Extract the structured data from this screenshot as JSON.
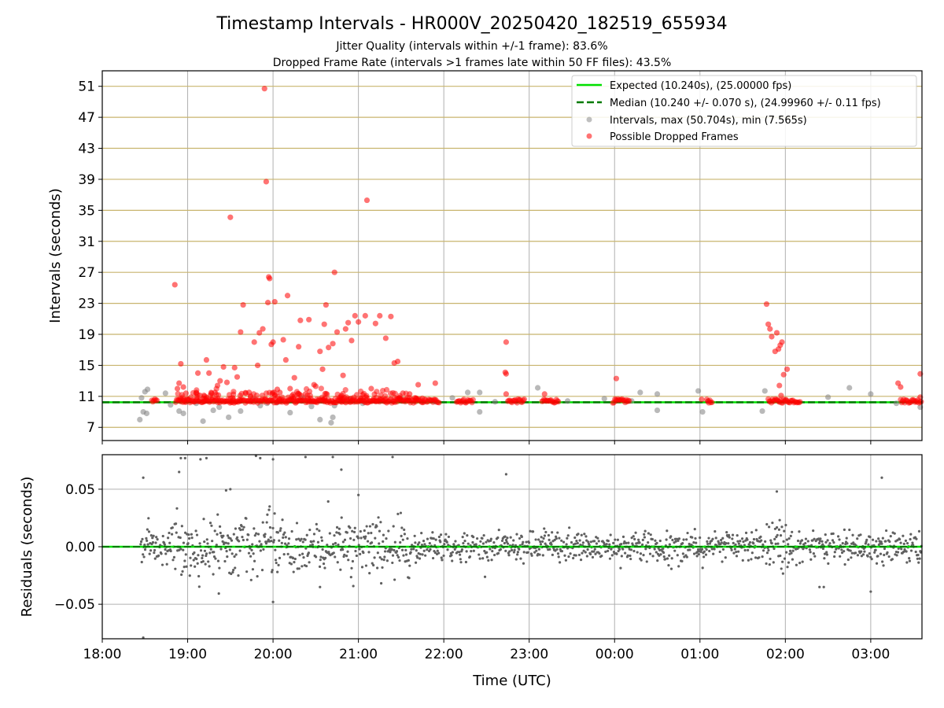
{
  "title": "Timestamp Intervals - HR000V_20250420_182519_655934",
  "subtitle_lines": [
    "Jitter Quality (intervals within +/-1 frame): 83.6%",
    "Dropped Frame Rate (intervals >1 frames late within 50 FF files): 43.5%"
  ],
  "colors": {
    "expected": "#00e000",
    "median": "#007a00",
    "intervals": "#808080",
    "dropped": "#ff0000",
    "hgrid_top": "#c8b46e",
    "grid": "#b0b0b0",
    "residual": "#606060"
  },
  "chart_data": [
    {
      "type": "scatter",
      "panel": "intervals",
      "ylabel": "Intervals (seconds)",
      "xlabel": "",
      "x_unit": "hours since 18:00 UTC",
      "xlim": [
        18.0,
        27.6
      ],
      "ylim": [
        5.3,
        53.0
      ],
      "yticks": [
        7,
        11,
        15,
        19,
        23,
        27,
        31,
        35,
        39,
        43,
        47,
        51
      ],
      "xticks": [
        {
          "value": 18,
          "label": "18:00"
        },
        {
          "value": 19,
          "label": "19:00"
        },
        {
          "value": 20,
          "label": "20:00"
        },
        {
          "value": 21,
          "label": "21:00"
        },
        {
          "value": 22,
          "label": "22:00"
        },
        {
          "value": 23,
          "label": "23:00"
        },
        {
          "value": 24,
          "label": "00:00"
        },
        {
          "value": 25,
          "label": "01:00"
        },
        {
          "value": 26,
          "label": "02:00"
        },
        {
          "value": 27,
          "label": "03:00"
        }
      ],
      "grid": true,
      "legend_position": "top-right",
      "lines": [
        {
          "name": "Expected (10.240s), (25.00000 fps)",
          "y": 10.24,
          "style": "solid"
        },
        {
          "name": "Median (10.240 +/- 0.070 s), (24.99960 +/- 0.11 fps)",
          "y": 10.24,
          "style": "dashed"
        }
      ],
      "series": [
        {
          "name": "Intervals, max (50.704s), min (7.565s)",
          "points": [
            [
              18.44,
              8.0
            ],
            [
              18.48,
              9.0
            ],
            [
              18.5,
              11.6
            ],
            [
              18.52,
              8.8
            ],
            [
              18.53,
              11.9
            ],
            [
              18.46,
              10.8
            ],
            [
              18.74,
              11.4
            ],
            [
              18.8,
              9.9
            ],
            [
              18.9,
              9.1
            ],
            [
              18.95,
              8.8
            ],
            [
              19.1,
              10.1
            ],
            [
              19.18,
              7.8
            ],
            [
              19.3,
              9.2
            ],
            [
              19.37,
              9.6
            ],
            [
              19.48,
              8.3
            ],
            [
              19.62,
              9.1
            ],
            [
              19.78,
              10.6
            ],
            [
              19.85,
              9.8
            ],
            [
              19.93,
              10.1
            ],
            [
              20.05,
              10.2
            ],
            [
              20.2,
              8.9
            ],
            [
              20.35,
              10.8
            ],
            [
              20.45,
              9.7
            ],
            [
              20.55,
              8.0
            ],
            [
              20.68,
              7.6
            ],
            [
              20.7,
              8.3
            ],
            [
              20.72,
              9.8
            ],
            [
              20.9,
              10.6
            ],
            [
              21.05,
              10.1
            ],
            [
              21.5,
              10.7
            ],
            [
              21.9,
              10.3
            ],
            [
              22.1,
              10.8
            ],
            [
              22.28,
              11.5
            ],
            [
              22.42,
              11.5
            ],
            [
              22.42,
              9.0
            ],
            [
              22.6,
              10.3
            ],
            [
              23.1,
              12.1
            ],
            [
              23.45,
              10.4
            ],
            [
              23.88,
              10.7
            ],
            [
              24.2,
              10.4
            ],
            [
              24.3,
              11.5
            ],
            [
              24.5,
              11.3
            ],
            [
              24.5,
              9.2
            ],
            [
              24.98,
              11.7
            ],
            [
              25.03,
              9.0
            ],
            [
              25.1,
              10.4
            ],
            [
              25.73,
              9.1
            ],
            [
              25.76,
              11.7
            ],
            [
              26.0,
              10.5
            ],
            [
              26.5,
              10.9
            ],
            [
              26.75,
              12.1
            ],
            [
              27.0,
              11.3
            ],
            [
              27.3,
              10.1
            ],
            [
              27.58,
              9.6
            ]
          ]
        },
        {
          "name": "Possible Dropped Frames",
          "points": [
            [
              18.85,
              25.4
            ],
            [
              18.88,
              12.0
            ],
            [
              18.9,
              12.7
            ],
            [
              18.92,
              15.2
            ],
            [
              18.95,
              12.2
            ],
            [
              18.98,
              11.4
            ],
            [
              19.1,
              11.4
            ],
            [
              19.12,
              14.0
            ],
            [
              19.2,
              11.0
            ],
            [
              19.22,
              15.7
            ],
            [
              19.25,
              14.0
            ],
            [
              19.28,
              11.4
            ],
            [
              19.32,
              11.5
            ],
            [
              19.35,
              12.4
            ],
            [
              19.38,
              13.0
            ],
            [
              19.42,
              14.8
            ],
            [
              19.46,
              12.8
            ],
            [
              19.5,
              34.1
            ],
            [
              19.55,
              14.7
            ],
            [
              19.58,
              13.5
            ],
            [
              19.62,
              19.3
            ],
            [
              19.65,
              22.8
            ],
            [
              19.68,
              11.4
            ],
            [
              19.72,
              11.5
            ],
            [
              19.78,
              18.0
            ],
            [
              19.82,
              15.0
            ],
            [
              19.84,
              19.2
            ],
            [
              19.88,
              19.7
            ],
            [
              19.9,
              50.7
            ],
            [
              19.92,
              38.7
            ],
            [
              19.94,
              23.1
            ],
            [
              19.95,
              26.4
            ],
            [
              19.96,
              26.2
            ],
            [
              19.98,
              17.7
            ],
            [
              20.0,
              18.0
            ],
            [
              20.02,
              23.2
            ],
            [
              20.05,
              11.9
            ],
            [
              20.08,
              11.5
            ],
            [
              20.12,
              18.3
            ],
            [
              20.15,
              15.7
            ],
            [
              20.17,
              24.0
            ],
            [
              20.2,
              12.0
            ],
            [
              20.25,
              13.4
            ],
            [
              20.3,
              17.4
            ],
            [
              20.32,
              20.8
            ],
            [
              20.38,
              11.3
            ],
            [
              20.42,
              20.9
            ],
            [
              20.48,
              12.5
            ],
            [
              20.5,
              12.3
            ],
            [
              20.55,
              16.8
            ],
            [
              20.58,
              14.5
            ],
            [
              20.6,
              20.3
            ],
            [
              20.62,
              22.8
            ],
            [
              20.65,
              17.3
            ],
            [
              20.7,
              17.8
            ],
            [
              20.72,
              27.0
            ],
            [
              20.75,
              19.3
            ],
            [
              20.8,
              11.1
            ],
            [
              20.82,
              13.7
            ],
            [
              20.85,
              19.7
            ],
            [
              20.88,
              20.5
            ],
            [
              20.92,
              18.2
            ],
            [
              20.96,
              21.4
            ],
            [
              21.0,
              20.6
            ],
            [
              21.05,
              11.2
            ],
            [
              21.08,
              21.4
            ],
            [
              21.1,
              36.3
            ],
            [
              21.15,
              12.0
            ],
            [
              21.2,
              20.4
            ],
            [
              21.25,
              21.4
            ],
            [
              21.32,
              18.5
            ],
            [
              21.38,
              21.3
            ],
            [
              21.42,
              15.3
            ],
            [
              21.46,
              15.5
            ],
            [
              21.52,
              11.4
            ],
            [
              21.6,
              11.3
            ],
            [
              21.7,
              12.5
            ],
            [
              21.9,
              12.7
            ],
            [
              22.73,
              18.0
            ],
            [
              22.73,
              13.9
            ],
            [
              22.73,
              11.3
            ],
            [
              22.72,
              14.1
            ],
            [
              23.18,
              11.3
            ],
            [
              24.02,
              13.3
            ],
            [
              25.02,
              10.6
            ],
            [
              25.78,
              22.9
            ],
            [
              25.8,
              20.3
            ],
            [
              25.82,
              19.7
            ],
            [
              25.84,
              18.7
            ],
            [
              25.88,
              16.8
            ],
            [
              25.9,
              19.2
            ],
            [
              25.92,
              17.1
            ],
            [
              25.94,
              17.6
            ],
            [
              25.96,
              18.0
            ],
            [
              25.98,
              13.8
            ],
            [
              26.02,
              14.5
            ],
            [
              25.93,
              12.4
            ],
            [
              25.95,
              11.1
            ],
            [
              27.32,
              12.7
            ],
            [
              27.35,
              12.2
            ],
            [
              27.58,
              13.9
            ],
            [
              27.58,
              10.9
            ]
          ],
          "bands": [
            [
              18.58,
              18.65
            ],
            [
              18.86,
              21.95
            ],
            [
              22.15,
              22.35
            ],
            [
              22.75,
              22.95
            ],
            [
              23.15,
              23.35
            ],
            [
              23.98,
              24.18
            ],
            [
              25.08,
              25.15
            ],
            [
              25.8,
              26.18
            ],
            [
              27.35,
              27.6
            ]
          ],
          "band_y": 10.4
        }
      ]
    },
    {
      "type": "scatter",
      "panel": "residuals",
      "ylabel": "Residuals (seconds)",
      "xlabel": "Time (UTC)",
      "xlim": [
        18.0,
        27.6
      ],
      "ylim": [
        -0.08,
        0.08
      ],
      "yticks": [
        {
          "value": -0.05,
          "label": "−0.05"
        },
        {
          "value": 0.0,
          "label": "0.00"
        },
        {
          "value": 0.05,
          "label": "0.05"
        }
      ],
      "xticks": [
        {
          "value": 18,
          "label": "18:00"
        },
        {
          "value": 19,
          "label": "19:00"
        },
        {
          "value": 20,
          "label": "20:00"
        },
        {
          "value": 21,
          "label": "21:00"
        },
        {
          "value": 22,
          "label": "22:00"
        },
        {
          "value": 23,
          "label": "23:00"
        },
        {
          "value": 24,
          "label": "00:00"
        },
        {
          "value": 25,
          "label": "01:00"
        },
        {
          "value": 26,
          "label": "02:00"
        },
        {
          "value": 27,
          "label": "03:00"
        }
      ],
      "grid": true,
      "zero_line": 0.0,
      "x_range": [
        18.45,
        27.6
      ],
      "n_points": 1400,
      "points_outliers": [
        [
          18.48,
          0.06
        ],
        [
          18.48,
          -0.079
        ],
        [
          18.9,
          0.065
        ],
        [
          18.92,
          0.077
        ],
        [
          18.97,
          0.077
        ],
        [
          19.15,
          0.076
        ],
        [
          19.22,
          0.077
        ],
        [
          19.45,
          0.049
        ],
        [
          19.5,
          0.05
        ],
        [
          19.8,
          0.079
        ],
        [
          19.85,
          0.077
        ],
        [
          19.96,
          0.035
        ],
        [
          20.0,
          0.076
        ],
        [
          20.0,
          -0.048
        ],
        [
          20.38,
          0.078
        ],
        [
          20.55,
          -0.035
        ],
        [
          20.7,
          0.078
        ],
        [
          20.8,
          0.067
        ],
        [
          21.0,
          0.045
        ],
        [
          21.4,
          0.078
        ],
        [
          22.73,
          0.063
        ],
        [
          25.9,
          0.048
        ],
        [
          26.4,
          -0.035
        ],
        [
          26.45,
          -0.035
        ],
        [
          27.0,
          -0.039
        ],
        [
          27.13,
          0.06
        ]
      ]
    }
  ]
}
